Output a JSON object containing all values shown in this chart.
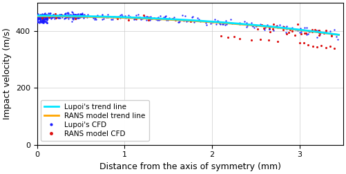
{
  "title": "",
  "xlabel": "Distance from the axis of symmetry (mm)",
  "ylabel": "Impact velocity (m/s)",
  "xlim": [
    0,
    3.5
  ],
  "ylim": [
    0,
    500
  ],
  "yticks": [
    0,
    200,
    400
  ],
  "xticks": [
    0,
    1,
    2,
    3
  ],
  "lupoi_trend_color": "#00e5ff",
  "rans_trend_color": "#ffa500",
  "lupoi_cfd_color": "#1a1aff",
  "rans_cfd_color": "#dd1111",
  "lupoi_trend_lw": 2.0,
  "rans_trend_lw": 2.0,
  "legend_labels": [
    "Lupoi's trend line",
    "RANS model trend line",
    "Lupoi's CFD",
    "RANS model CFD"
  ],
  "grid_color": "#cccccc",
  "background_color": "#ffffff"
}
